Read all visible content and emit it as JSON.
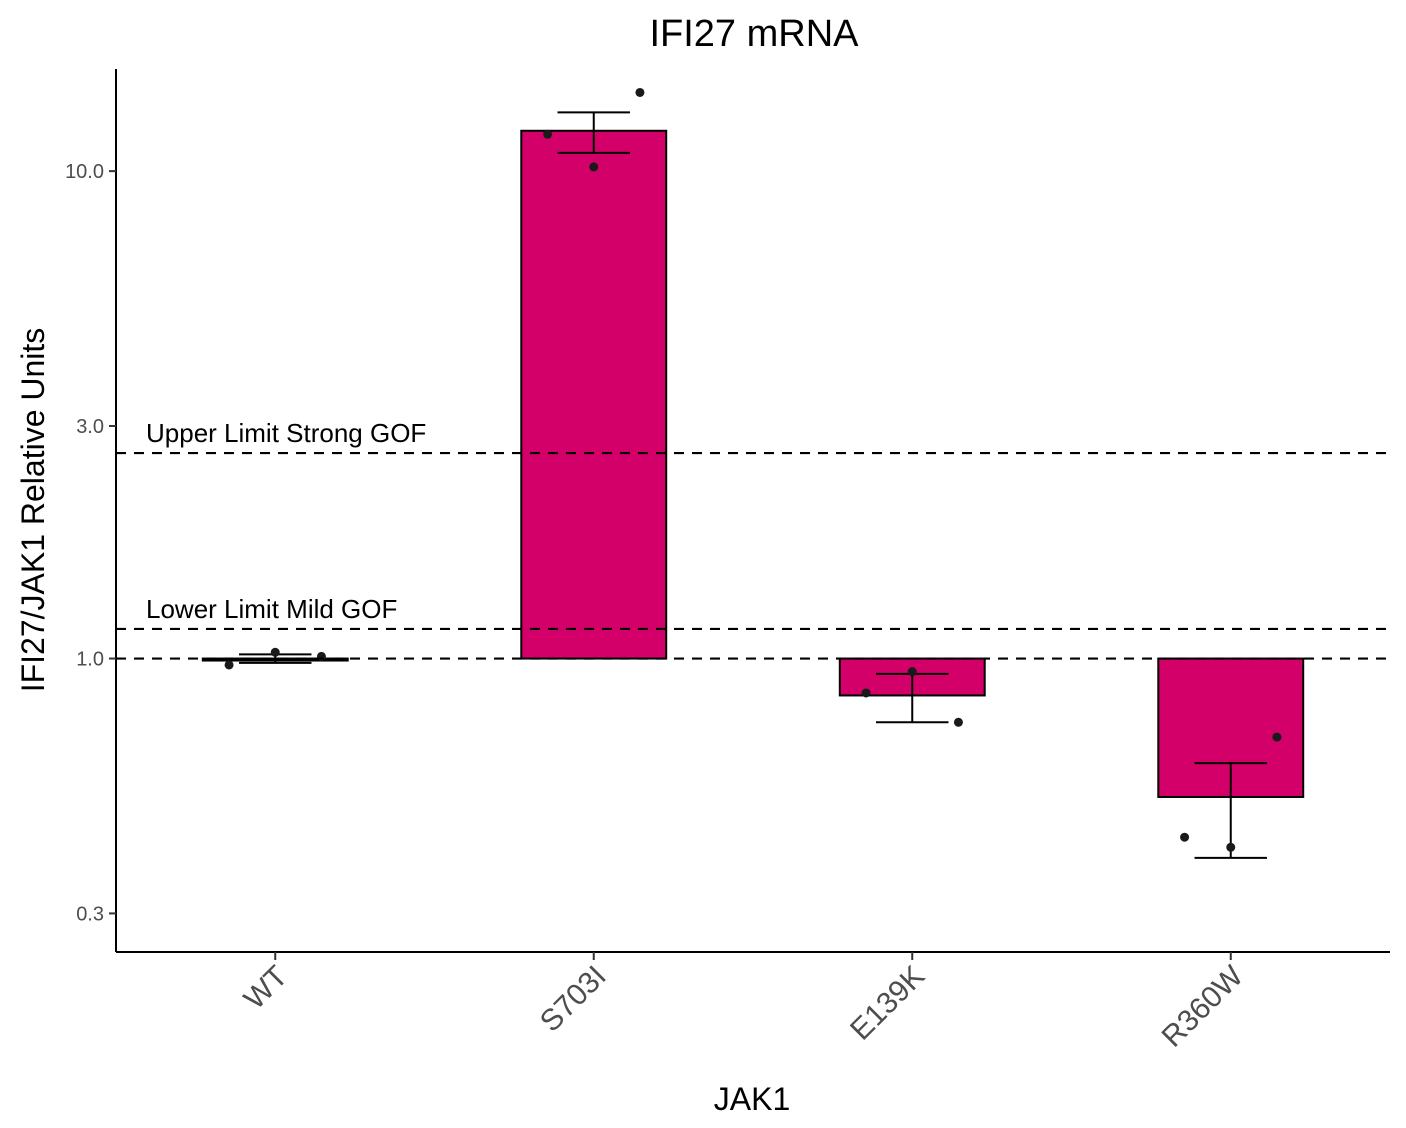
{
  "chart_data": {
    "type": "bar",
    "title": "IFI27 mRNA",
    "xlabel": "JAK1",
    "ylabel": "IFI27/JAK1 Relative Units",
    "y_scale": "log10",
    "ylim": [
      0.25,
      16.2
    ],
    "yticks": [
      {
        "value": 0.3,
        "label": "0.3"
      },
      {
        "value": 1,
        "label": "1.0"
      },
      {
        "value": 3,
        "label": "3.0"
      },
      {
        "value": 10,
        "label": "10.0"
      }
    ],
    "baseline": 1,
    "categories": [
      "WT",
      "S703I",
      "E139K",
      "R360W"
    ],
    "values": [
      1.0,
      12.1,
      0.84,
      0.52
    ],
    "error_low": [
      0.98,
      10.9,
      0.74,
      0.39
    ],
    "error_high": [
      1.02,
      13.2,
      0.93,
      0.61
    ],
    "points": [
      [
        0.97,
        1.03,
        1.01
      ],
      [
        11.9,
        10.2,
        14.5
      ],
      [
        0.85,
        0.94,
        0.74
      ],
      [
        0.43,
        0.41,
        0.69
      ]
    ],
    "reference_lines": [
      {
        "value": 2.64,
        "label": "Upper Limit Strong GOF"
      },
      {
        "value": 1.15,
        "label": "Lower Limit Mild GOF"
      },
      {
        "value": 1.0,
        "label": ""
      }
    ],
    "bar_color": "#D4006A",
    "grid": false,
    "legend": "none"
  }
}
